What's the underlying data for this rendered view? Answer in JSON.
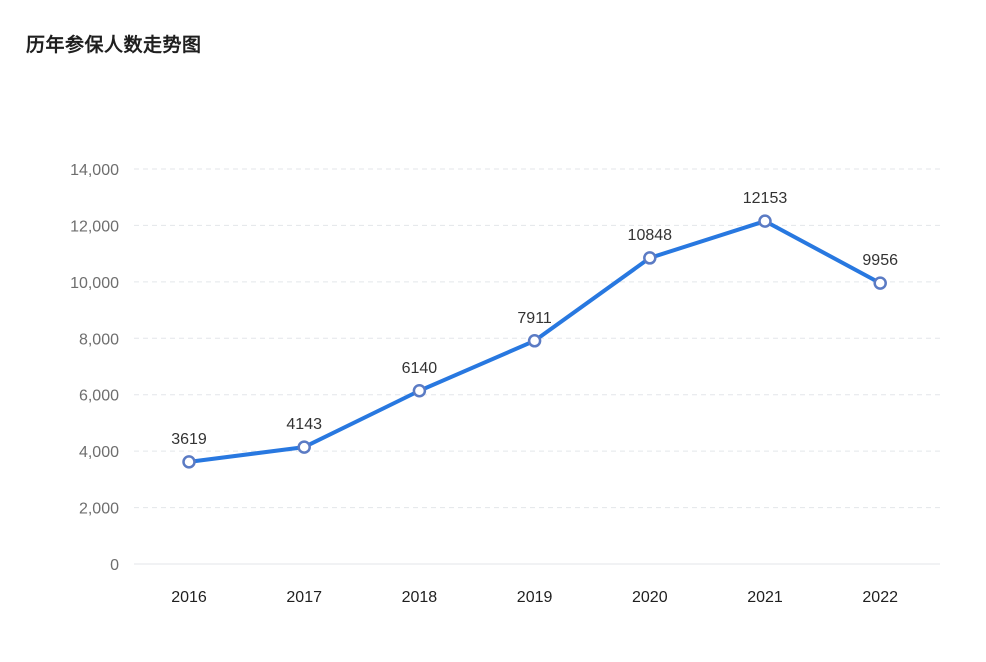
{
  "chart_data": {
    "type": "line",
    "title": "历年参保人数走势图",
    "xlabel": "",
    "ylabel": "",
    "categories": [
      "2016",
      "2017",
      "2018",
      "2019",
      "2020",
      "2021",
      "2022"
    ],
    "series": [
      {
        "values": [
          3619,
          4143,
          6140,
          7911,
          10848,
          12153,
          9956
        ]
      }
    ],
    "ylim": [
      0,
      14000
    ],
    "yticks": [
      0,
      2000,
      4000,
      6000,
      8000,
      10000,
      12000,
      14000
    ],
    "ytick_labels": [
      "0",
      "2,000",
      "4,000",
      "6,000",
      "8,000",
      "10,000",
      "12,000",
      "14,000"
    ],
    "data_labels": [
      "3619",
      "4143",
      "6140",
      "7911",
      "10848",
      "12153",
      "9956"
    ],
    "grid": true,
    "legend": "none",
    "colors": {
      "line": "#2878e0",
      "marker_stroke": "#5b7bc4",
      "marker_fill": "#ffffff",
      "grid": "#e3e6ea"
    }
  }
}
